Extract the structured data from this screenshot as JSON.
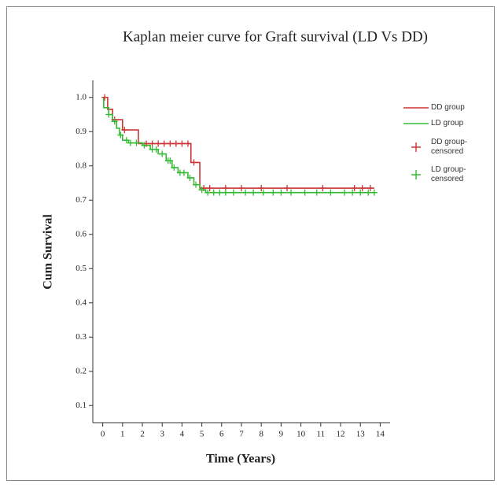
{
  "chart_data": {
    "type": "line",
    "title": "Kaplan meier curve for Graft survival (LD Vs DD)",
    "x_label": "Time (Years)",
    "y_label": "Cum Survival",
    "xlim": [
      -0.5,
      14.5
    ],
    "ylim": [
      0.05,
      1.05
    ],
    "xticks": [
      0,
      1,
      2,
      3,
      4,
      5,
      6,
      7,
      8,
      9,
      10,
      11,
      12,
      13,
      14
    ],
    "yticks": [
      0.1,
      0.2,
      0.3,
      0.4,
      0.5,
      0.6,
      0.7,
      0.8,
      0.9,
      {
        "value": 1,
        "label": "1.0"
      }
    ],
    "series": [
      {
        "name": "DD group",
        "color": "#cc3333",
        "marker": "line",
        "x": [
          0,
          0.25,
          0.25,
          0.5,
          0.5,
          1.0,
          1.0,
          1.8,
          1.8,
          4.45,
          4.45,
          4.9,
          4.9,
          13.7
        ],
        "values": [
          1,
          1,
          0.965,
          0.965,
          0.935,
          0.935,
          0.905,
          0.905,
          0.865,
          0.865,
          0.81,
          0.81,
          0.735,
          0.735
        ]
      },
      {
        "name": "LD group",
        "color": "#33bb33",
        "marker": "line",
        "x": [
          0,
          0.05,
          0.05,
          0.3,
          0.3,
          0.5,
          0.5,
          0.7,
          0.7,
          0.85,
          0.85,
          1.0,
          1.0,
          1.3,
          1.3,
          2.0,
          2.0,
          2.4,
          2.4,
          2.8,
          2.8,
          3.2,
          3.2,
          3.5,
          3.5,
          3.8,
          3.8,
          4.3,
          4.3,
          4.6,
          4.6,
          4.9,
          4.9,
          5.2,
          5.2,
          13.7
        ],
        "values": [
          1,
          1,
          0.97,
          0.97,
          0.95,
          0.95,
          0.93,
          0.93,
          0.91,
          0.91,
          0.89,
          0.89,
          0.875,
          0.875,
          0.867,
          0.867,
          0.86,
          0.86,
          0.848,
          0.848,
          0.835,
          0.835,
          0.815,
          0.815,
          0.795,
          0.795,
          0.78,
          0.78,
          0.765,
          0.765,
          0.745,
          0.745,
          0.73,
          0.73,
          0.722,
          0.722
        ]
      },
      {
        "name": "DD group-censored",
        "color": "#cc3333",
        "marker": "plus",
        "x": [
          0.1,
          0.6,
          1.1,
          2.2,
          2.5,
          2.8,
          3.1,
          3.4,
          3.7,
          4.0,
          4.3,
          4.6,
          5.1,
          5.4,
          6.2,
          7.0,
          8.0,
          9.3,
          11.1,
          12.7,
          13.1,
          13.5
        ],
        "values": [
          1,
          0.935,
          0.905,
          0.865,
          0.865,
          0.865,
          0.865,
          0.865,
          0.865,
          0.865,
          0.865,
          0.81,
          0.735,
          0.735,
          0.735,
          0.735,
          0.735,
          0.735,
          0.735,
          0.735,
          0.735,
          0.735
        ]
      },
      {
        "name": "LD group-censored",
        "color": "#33bb33",
        "marker": "plus",
        "x": [
          0.3,
          0.6,
          0.9,
          1.2,
          1.4,
          1.7,
          2.1,
          2.5,
          2.7,
          3.0,
          3.3,
          3.4,
          3.6,
          3.9,
          4.1,
          4.4,
          4.7,
          5.0,
          5.3,
          5.6,
          5.9,
          6.2,
          6.6,
          7.2,
          7.6,
          8.1,
          8.6,
          9.0,
          9.5,
          10.2,
          10.8,
          11.5,
          12.2,
          12.6,
          13.0,
          13.4,
          13.7
        ],
        "values": [
          0.95,
          0.93,
          0.89,
          0.875,
          0.867,
          0.867,
          0.86,
          0.848,
          0.848,
          0.835,
          0.815,
          0.815,
          0.795,
          0.78,
          0.78,
          0.765,
          0.745,
          0.73,
          0.722,
          0.722,
          0.722,
          0.722,
          0.722,
          0.722,
          0.722,
          0.722,
          0.722,
          0.722,
          0.722,
          0.722,
          0.722,
          0.722,
          0.722,
          0.722,
          0.722,
          0.722,
          0.722
        ]
      }
    ]
  }
}
